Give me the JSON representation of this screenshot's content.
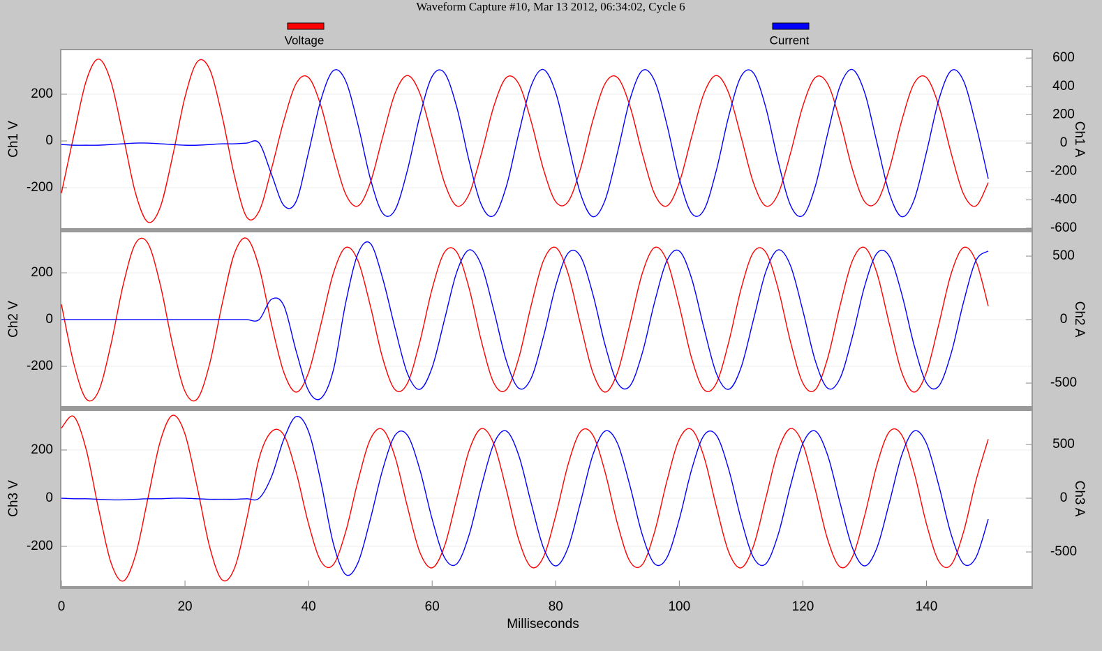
{
  "chart_data": [
    {
      "type": "line",
      "title": "Waveform Capture #10, Mar 13 2012, 06:34:02,  Cycle 6",
      "ylabel": "Ch1 V",
      "y2label": "Ch1 A",
      "x": [
        0,
        2,
        4,
        6,
        8,
        10,
        12,
        14,
        16,
        18,
        20,
        22,
        24,
        26,
        28,
        30,
        32,
        34,
        36,
        38,
        40,
        42,
        44,
        46,
        48,
        50,
        52,
        54,
        56,
        58,
        60,
        62,
        64,
        66,
        68,
        70,
        72,
        74,
        76,
        78,
        80,
        82,
        84,
        86,
        88,
        90,
        92,
        94,
        96,
        98,
        100,
        102,
        104,
        106,
        108,
        110,
        112,
        114,
        116,
        118,
        120,
        122,
        124,
        126,
        128,
        130,
        132,
        134,
        136,
        138,
        140,
        142,
        144,
        146,
        148,
        150
      ],
      "xlim": [
        0,
        157
      ],
      "ylim": [
        -373,
        388
      ],
      "yticks": [
        -200,
        0,
        200
      ],
      "y2lim": [
        -600,
        655
      ],
      "y2ticks": [
        -600,
        -400,
        -200,
        0,
        200,
        400,
        600
      ],
      "grid": true,
      "series": [
        {
          "name": "Voltage",
          "color": "#ff0000",
          "values": [
            -223,
            23,
            256,
            350,
            255,
            21,
            -224,
            -347,
            -283,
            -65,
            188,
            339,
            306,
            107,
            -149,
            -326,
            -300,
            -119,
            87,
            246,
            271,
            150,
            -53,
            -227,
            -278,
            -178,
            18,
            204,
            280,
            204,
            17,
            -179,
            -278,
            -226,
            -52,
            150,
            271,
            245,
            86,
            -120,
            -260,
            -260,
            -119,
            87,
            246,
            271,
            150,
            -53,
            -227,
            -278,
            -178,
            18,
            204,
            280,
            204,
            17,
            -179,
            -278,
            -226,
            -52,
            150,
            271,
            245,
            86,
            -120,
            -260,
            -260,
            -119,
            87,
            246,
            271,
            150,
            -53,
            -227,
            -278,
            -178
          ]
        },
        {
          "name": "Current",
          "color": "#0000ff",
          "axis": "y2",
          "values": [
            -10,
            -15,
            -15,
            -15,
            -10,
            -5,
            0,
            0,
            -5,
            -10,
            -15,
            -15,
            -10,
            -5,
            -5,
            0,
            0,
            -220,
            -440,
            -410,
            -65,
            306,
            511,
            439,
            129,
            -251,
            -495,
            -471,
            -191,
            191,
            471,
            495,
            251,
            -129,
            -439,
            -511,
            -306,
            65,
            401,
            519,
            356,
            0,
            -356,
            -519,
            -401,
            -65,
            306,
            511,
            439,
            129,
            -251,
            -495,
            -471,
            -191,
            191,
            471,
            495,
            251,
            -129,
            -439,
            -511,
            -306,
            65,
            401,
            519,
            356,
            0,
            -356,
            -519,
            -401,
            -65,
            306,
            511,
            439,
            129,
            -251
          ]
        }
      ]
    },
    {
      "type": "line",
      "ylabel": "Ch2 V",
      "y2label": "Ch2 A",
      "x": [
        0,
        2,
        4,
        6,
        8,
        10,
        12,
        14,
        16,
        18,
        20,
        22,
        24,
        26,
        28,
        30,
        32,
        34,
        36,
        38,
        40,
        42,
        44,
        46,
        48,
        50,
        52,
        54,
        56,
        58,
        60,
        62,
        64,
        66,
        68,
        70,
        72,
        74,
        76,
        78,
        80,
        82,
        84,
        86,
        88,
        90,
        92,
        94,
        96,
        98,
        100,
        102,
        104,
        106,
        108,
        110,
        112,
        114,
        116,
        118,
        120,
        122,
        124,
        126,
        128,
        130,
        132,
        134,
        136,
        138,
        140,
        142,
        144,
        146,
        148,
        150
      ],
      "xlim": [
        0,
        157
      ],
      "ylim": [
        -370,
        373
      ],
      "yticks": [
        -200,
        0,
        200
      ],
      "y2lim": [
        -681,
        687
      ],
      "y2ticks": [
        -500,
        0,
        500
      ],
      "grid": true,
      "series": [
        {
          "name": "Voltage",
          "color": "#ff0000",
          "values": [
            65,
            -188,
            -339,
            -307,
            -108,
            149,
            326,
            326,
            149,
            -108,
            -307,
            -339,
            -188,
            65,
            283,
            347,
            223,
            -20,
            -226,
            -310,
            -226,
            -20,
            197,
            308,
            251,
            58,
            -166,
            -300,
            -272,
            -96,
            132,
            288,
            288,
            132,
            -96,
            -272,
            -300,
            -166,
            58,
            251,
            308,
            197,
            -20,
            -226,
            -310,
            -226,
            -20,
            197,
            308,
            251,
            58,
            -166,
            -300,
            -272,
            -96,
            132,
            288,
            288,
            132,
            -96,
            -272,
            -300,
            -166,
            58,
            251,
            308,
            197,
            -20,
            -226,
            -310,
            -226,
            -20,
            197,
            308,
            251,
            58
          ]
        },
        {
          "name": "Current",
          "color": "#0000ff",
          "axis": "y2",
          "values": [
            0,
            0,
            0,
            0,
            0,
            0,
            0,
            0,
            0,
            0,
            0,
            0,
            0,
            0,
            0,
            0,
            0,
            160,
            110,
            -250,
            -560,
            -620,
            -400,
            130,
            520,
            600,
            323,
            -69,
            -424,
            -549,
            -377,
            0,
            377,
            549,
            424,
            69,
            -323,
            -540,
            -464,
            -137,
            265,
            523,
            498,
            202,
            -202,
            -498,
            -523,
            -265,
            137,
            464,
            540,
            323,
            -69,
            -424,
            -549,
            -377,
            0,
            377,
            549,
            424,
            69,
            -323,
            -540,
            -464,
            -137,
            265,
            523,
            498,
            202,
            -202,
            -498,
            -523,
            -265,
            137,
            464,
            540
          ]
        }
      ]
    },
    {
      "type": "line",
      "ylabel": "Ch3 V",
      "y2label": "Ch3 A",
      "xlabel": "Milliseconds",
      "x": [
        0,
        2,
        4,
        6,
        8,
        10,
        12,
        14,
        16,
        18,
        20,
        22,
        24,
        26,
        28,
        30,
        32,
        34,
        36,
        38,
        40,
        42,
        44,
        46,
        48,
        50,
        52,
        54,
        56,
        58,
        60,
        62,
        64,
        66,
        68,
        70,
        72,
        74,
        76,
        78,
        80,
        82,
        84,
        86,
        88,
        90,
        92,
        94,
        96,
        98,
        100,
        102,
        104,
        106,
        108,
        110,
        112,
        114,
        116,
        118,
        120,
        122,
        124,
        126,
        128,
        130,
        132,
        134,
        136,
        138,
        140,
        142,
        144,
        146,
        148,
        150
      ],
      "xlim": [
        0,
        157
      ],
      "xticks": [
        0,
        20,
        40,
        60,
        80,
        100,
        120,
        140
      ],
      "ylim": [
        -365,
        362
      ],
      "yticks": [
        -200,
        0,
        200
      ],
      "y2lim": [
        -818,
        812
      ],
      "y2ticks": [
        -500,
        0,
        500
      ],
      "grid": true,
      "series": [
        {
          "name": "Voltage",
          "color": "#ff0000",
          "values": [
            291,
            339,
            203,
            -43,
            -266,
            -344,
            -236,
            0,
            236,
            344,
            266,
            43,
            -203,
            -339,
            -291,
            -86,
            166,
            276,
            262,
            107,
            -107,
            -262,
            -276,
            -140,
            72,
            245,
            285,
            171,
            -36,
            -224,
            -289,
            -199,
            0,
            199,
            289,
            224,
            36,
            -171,
            -285,
            -245,
            -72,
            140,
            276,
            262,
            107,
            -107,
            -262,
            -276,
            -140,
            72,
            245,
            285,
            171,
            -36,
            -224,
            -289,
            -199,
            0,
            199,
            289,
            224,
            36,
            -171,
            -285,
            -245,
            -72,
            140,
            276,
            262,
            107,
            -107,
            -262,
            -276,
            -140,
            72,
            245
          ]
        },
        {
          "name": "Current",
          "color": "#0000ff",
          "axis": "y2",
          "values": [
            0,
            -5,
            -5,
            -10,
            -15,
            -15,
            -10,
            -5,
            -5,
            0,
            0,
            -5,
            -10,
            -10,
            -10,
            -5,
            0,
            200,
            550,
            760,
            620,
            150,
            -420,
            -710,
            -600,
            -195,
            268,
            586,
            586,
            268,
            -195,
            -552,
            -610,
            -338,
            118,
            510,
            625,
            401,
            -40,
            -459,
            -630,
            -459,
            -40,
            401,
            625,
            510,
            118,
            -338,
            -610,
            -552,
            -195,
            268,
            586,
            586,
            268,
            -195,
            -552,
            -610,
            -338,
            118,
            510,
            625,
            401,
            -40,
            -459,
            -630,
            -459,
            -40,
            401,
            625,
            510,
            118,
            -338,
            -610,
            -552,
            -195
          ]
        }
      ]
    }
  ]
}
